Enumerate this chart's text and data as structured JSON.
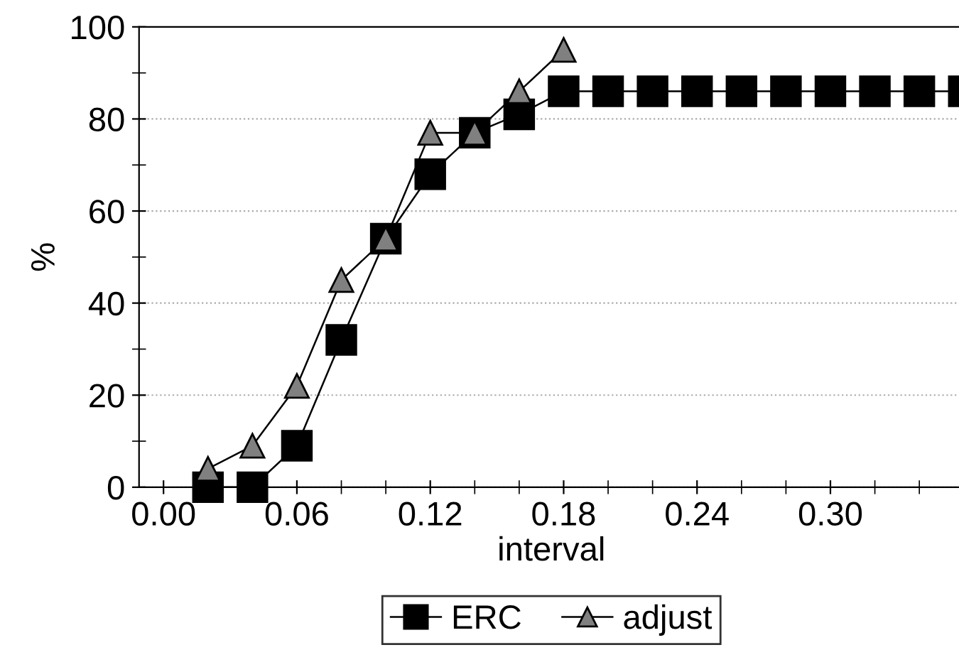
{
  "chart_data": {
    "type": "line",
    "xlabel": "interval",
    "ylabel": "%",
    "xlim": [
      -0.011,
      0.36
    ],
    "ylim": [
      0,
      100
    ],
    "xticks": [
      {
        "value": 0,
        "label": "0.00"
      },
      {
        "value": 0.02,
        "label": null
      },
      {
        "value": 0.04,
        "label": null
      },
      {
        "value": 0.06,
        "label": "0.06"
      },
      {
        "value": 0.08,
        "label": null
      },
      {
        "value": 0.1,
        "label": null
      },
      {
        "value": 0.12,
        "label": "0.12"
      },
      {
        "value": 0.14,
        "label": null
      },
      {
        "value": 0.16,
        "label": null
      },
      {
        "value": 0.18,
        "label": "0.18"
      },
      {
        "value": 0.2,
        "label": null
      },
      {
        "value": 0.22,
        "label": null
      },
      {
        "value": 0.24,
        "label": "0.24"
      },
      {
        "value": 0.26,
        "label": null
      },
      {
        "value": 0.28,
        "label": null
      },
      {
        "value": 0.3,
        "label": "0.30"
      },
      {
        "value": 0.32,
        "label": null
      },
      {
        "value": 0.34,
        "label": null
      }
    ],
    "yticks": [
      0,
      {
        "value": 10,
        "label": null
      },
      20,
      {
        "value": 30,
        "label": null
      },
      40,
      {
        "value": 50,
        "label": null
      },
      60,
      {
        "value": 70,
        "label": null
      },
      80,
      {
        "value": 90,
        "label": null
      },
      100
    ],
    "grid": "y",
    "legend": "bottom",
    "line_style": "solid",
    "series": [
      {
        "name": "ERC",
        "color": "#000000",
        "marker": "square",
        "x": [
          0.02,
          0.04,
          0.06,
          0.08,
          0.1,
          0.12,
          0.14,
          0.16,
          0.18,
          0.2,
          0.22,
          0.24,
          0.26,
          0.28,
          0.3,
          0.32,
          0.34,
          0.36
        ],
        "values": [
          0,
          0,
          9,
          32,
          54,
          68,
          77,
          81,
          86,
          86,
          86,
          86,
          86,
          86,
          86,
          86,
          86,
          86
        ]
      },
      {
        "name": "adjust",
        "color": "#808080",
        "marker": "triangle",
        "x": [
          0.02,
          0.04,
          0.06,
          0.08,
          0.1,
          0.12,
          0.14,
          0.16,
          0.18
        ],
        "values": [
          4,
          9,
          22,
          45,
          54,
          77,
          77,
          86,
          95
        ]
      }
    ]
  }
}
